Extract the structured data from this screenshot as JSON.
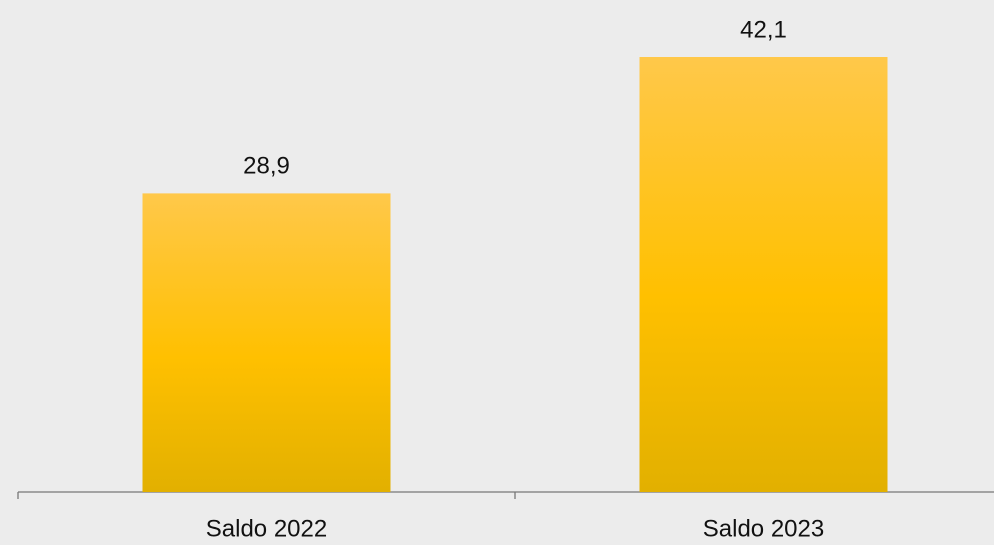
{
  "chart_data": {
    "type": "bar",
    "categories": [
      "Saldo 2022",
      "Saldo 2023"
    ],
    "values": [
      28.9,
      42.1
    ],
    "value_labels": [
      "28,9",
      "42,1"
    ],
    "color": "#ffc000"
  }
}
